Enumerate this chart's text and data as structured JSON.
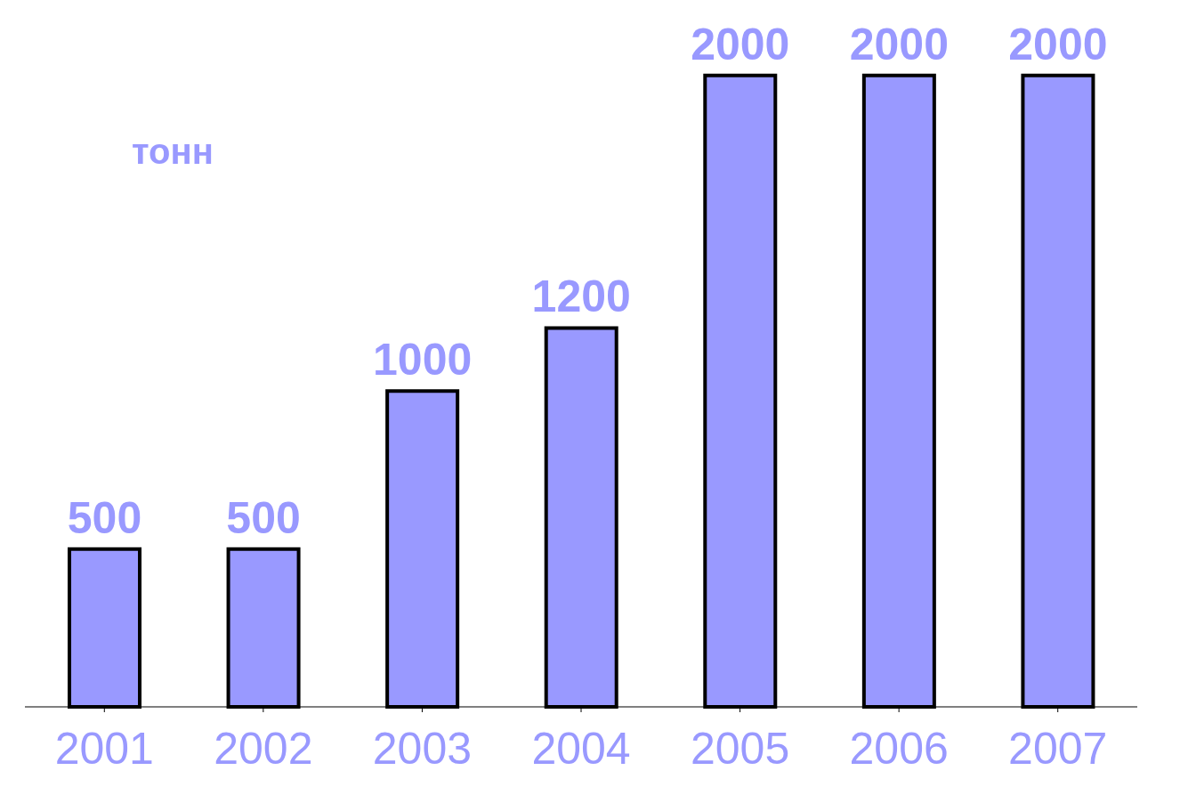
{
  "chart_data": {
    "type": "bar",
    "ylabel": "тонн",
    "categories": [
      "2001",
      "2002",
      "2003",
      "2004",
      "2005",
      "2006",
      "2007"
    ],
    "values": [
      500,
      500,
      1000,
      1200,
      2000,
      2000,
      2000
    ],
    "color": "#9999ff",
    "data_labels": true
  }
}
